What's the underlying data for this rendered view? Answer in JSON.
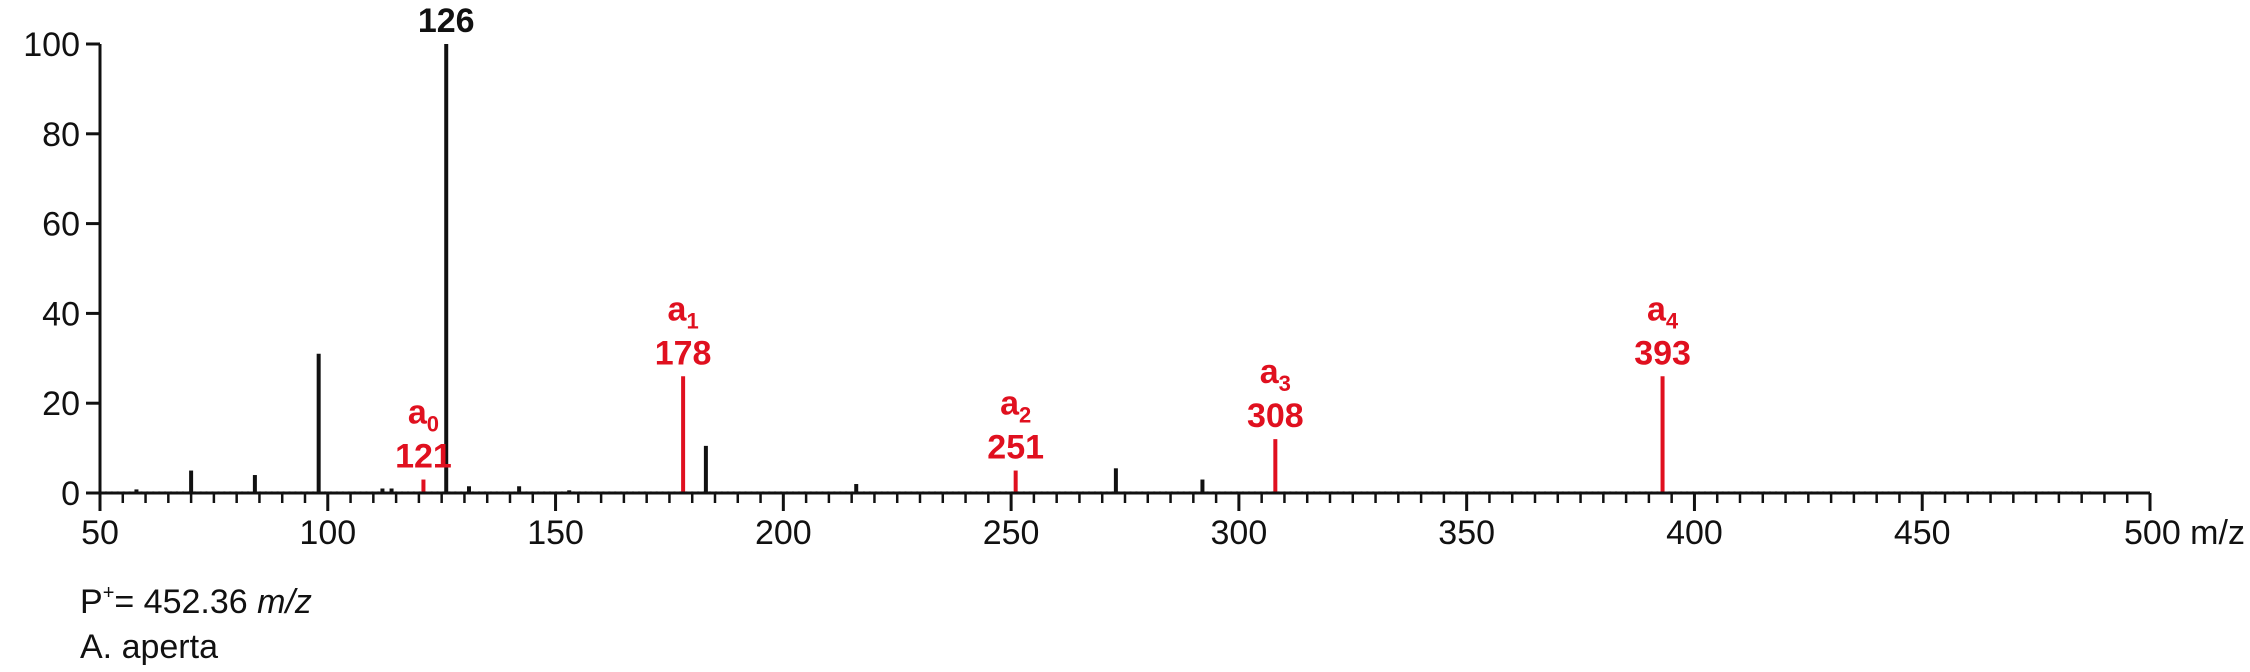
{
  "chart_data": {
    "type": "bar",
    "xlim": [
      50,
      500
    ],
    "ylim": [
      0,
      100
    ],
    "x_ticks": [
      50,
      100,
      150,
      200,
      250,
      300,
      350,
      400,
      450,
      500
    ],
    "x_tick_labels": [
      "50",
      "100",
      "150",
      "200",
      "250",
      "300",
      "350",
      "400",
      "450",
      "500 m/z"
    ],
    "y_ticks": [
      0,
      20,
      40,
      60,
      80,
      100
    ],
    "y_tick_labels": [
      "0",
      "20",
      "40",
      "60",
      "80",
      "100"
    ],
    "x_minor_step": 5,
    "grid": false,
    "colors": {
      "peak": "#111111",
      "annotated": "#e0101f",
      "axis": "#111111"
    },
    "peaks": [
      {
        "x": 58,
        "y": 0.8
      },
      {
        "x": 70,
        "y": 5
      },
      {
        "x": 84,
        "y": 4
      },
      {
        "x": 98,
        "y": 31
      },
      {
        "x": 112,
        "y": 1
      },
      {
        "x": 114,
        "y": 1
      },
      {
        "x": 126,
        "y": 100
      },
      {
        "x": 131,
        "y": 1.5
      },
      {
        "x": 142,
        "y": 1.5
      },
      {
        "x": 153,
        "y": 0.6
      },
      {
        "x": 183,
        "y": 10.5
      },
      {
        "x": 216,
        "y": 2
      },
      {
        "x": 273,
        "y": 5.5
      },
      {
        "x": 292,
        "y": 3
      }
    ],
    "base_peak": {
      "x": 126,
      "label": "126"
    },
    "annotated_peaks": [
      {
        "x": 121,
        "y": 3,
        "ion": "a",
        "sub": "0",
        "label": "121"
      },
      {
        "x": 178,
        "y": 26,
        "ion": "a",
        "sub": "1",
        "label": "178"
      },
      {
        "x": 251,
        "y": 5,
        "ion": "a",
        "sub": "2",
        "label": "251"
      },
      {
        "x": 308,
        "y": 12,
        "ion": "a",
        "sub": "3",
        "label": "308"
      },
      {
        "x": 393,
        "y": 26,
        "ion": "a",
        "sub": "4",
        "label": "393"
      }
    ]
  },
  "caption": {
    "precursor_prefix": "P",
    "precursor_sup": "+",
    "precursor_value": "= 452.36 ",
    "precursor_unit": "m/z",
    "species": "A. aperta"
  }
}
